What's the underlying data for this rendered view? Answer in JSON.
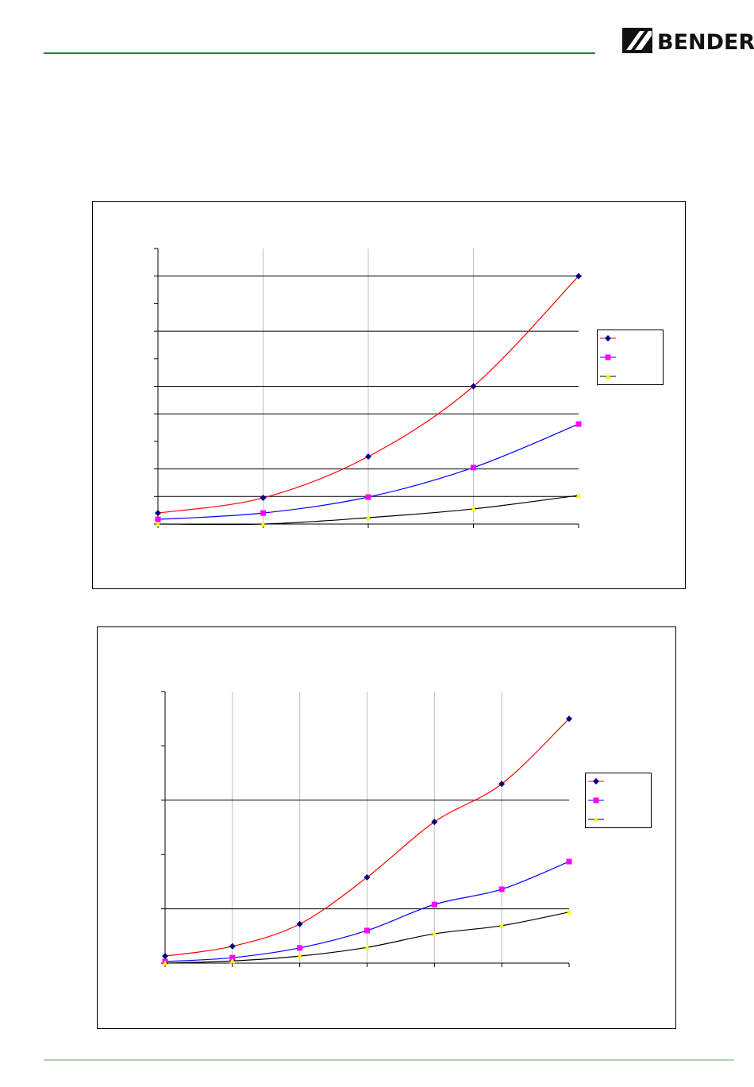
{
  "header": {
    "logo": "BENDER"
  },
  "chart_data": [
    {
      "type": "line",
      "smooth": true,
      "legend": "right",
      "x": [
        0,
        1,
        2,
        3,
        4
      ],
      "xlim": [
        0,
        4
      ],
      "xticks": [
        0,
        1,
        2,
        3,
        4
      ],
      "xgrid": [
        1,
        2,
        3
      ],
      "ylim": [
        0,
        10
      ],
      "yticks": [
        0,
        1,
        2,
        3,
        4,
        5,
        6,
        7,
        8,
        9,
        10
      ],
      "ygrid": [
        1,
        2,
        4,
        5,
        7,
        9
      ],
      "series": [
        {
          "color": "#ff0000",
          "marker": "diamond",
          "marker_color": "#000080",
          "values": [
            0.4,
            0.95,
            2.45,
            5,
            9
          ]
        },
        {
          "color": "#0000ff",
          "marker": "square",
          "marker_color": "#ff00ff",
          "values": [
            0.17,
            0.4,
            0.98,
            2.05,
            3.63
          ]
        },
        {
          "color": "#000000",
          "marker": "triangle",
          "marker_color": "#ffff00",
          "values": [
            0,
            0,
            0.23,
            0.55,
            1.04
          ]
        }
      ]
    },
    {
      "type": "line",
      "smooth": true,
      "legend": "right",
      "x": [
        0,
        1,
        2,
        3,
        4,
        5,
        6
      ],
      "xlim": [
        0,
        6
      ],
      "xticks": [
        0,
        1,
        2,
        3,
        4,
        5,
        6
      ],
      "xgrid": [
        1,
        2,
        3,
        4,
        5
      ],
      "ylim": [
        0,
        5
      ],
      "yticks": [
        0,
        1,
        2,
        3,
        4,
        5
      ],
      "ygrid": [
        1,
        3
      ],
      "series": [
        {
          "color": "#ff0000",
          "marker": "diamond",
          "marker_color": "#000080",
          "values": [
            0.13,
            0.31,
            0.72,
            1.58,
            2.6,
            3.3,
            4.5
          ]
        },
        {
          "color": "#0000ff",
          "marker": "square",
          "marker_color": "#ff00ff",
          "values": [
            0.03,
            0.1,
            0.28,
            0.6,
            1.08,
            1.36,
            1.87
          ]
        },
        {
          "color": "#000000",
          "marker": "triangle",
          "marker_color": "#ffff00",
          "values": [
            0,
            0.04,
            0.13,
            0.29,
            0.54,
            0.69,
            0.94
          ]
        }
      ]
    }
  ]
}
